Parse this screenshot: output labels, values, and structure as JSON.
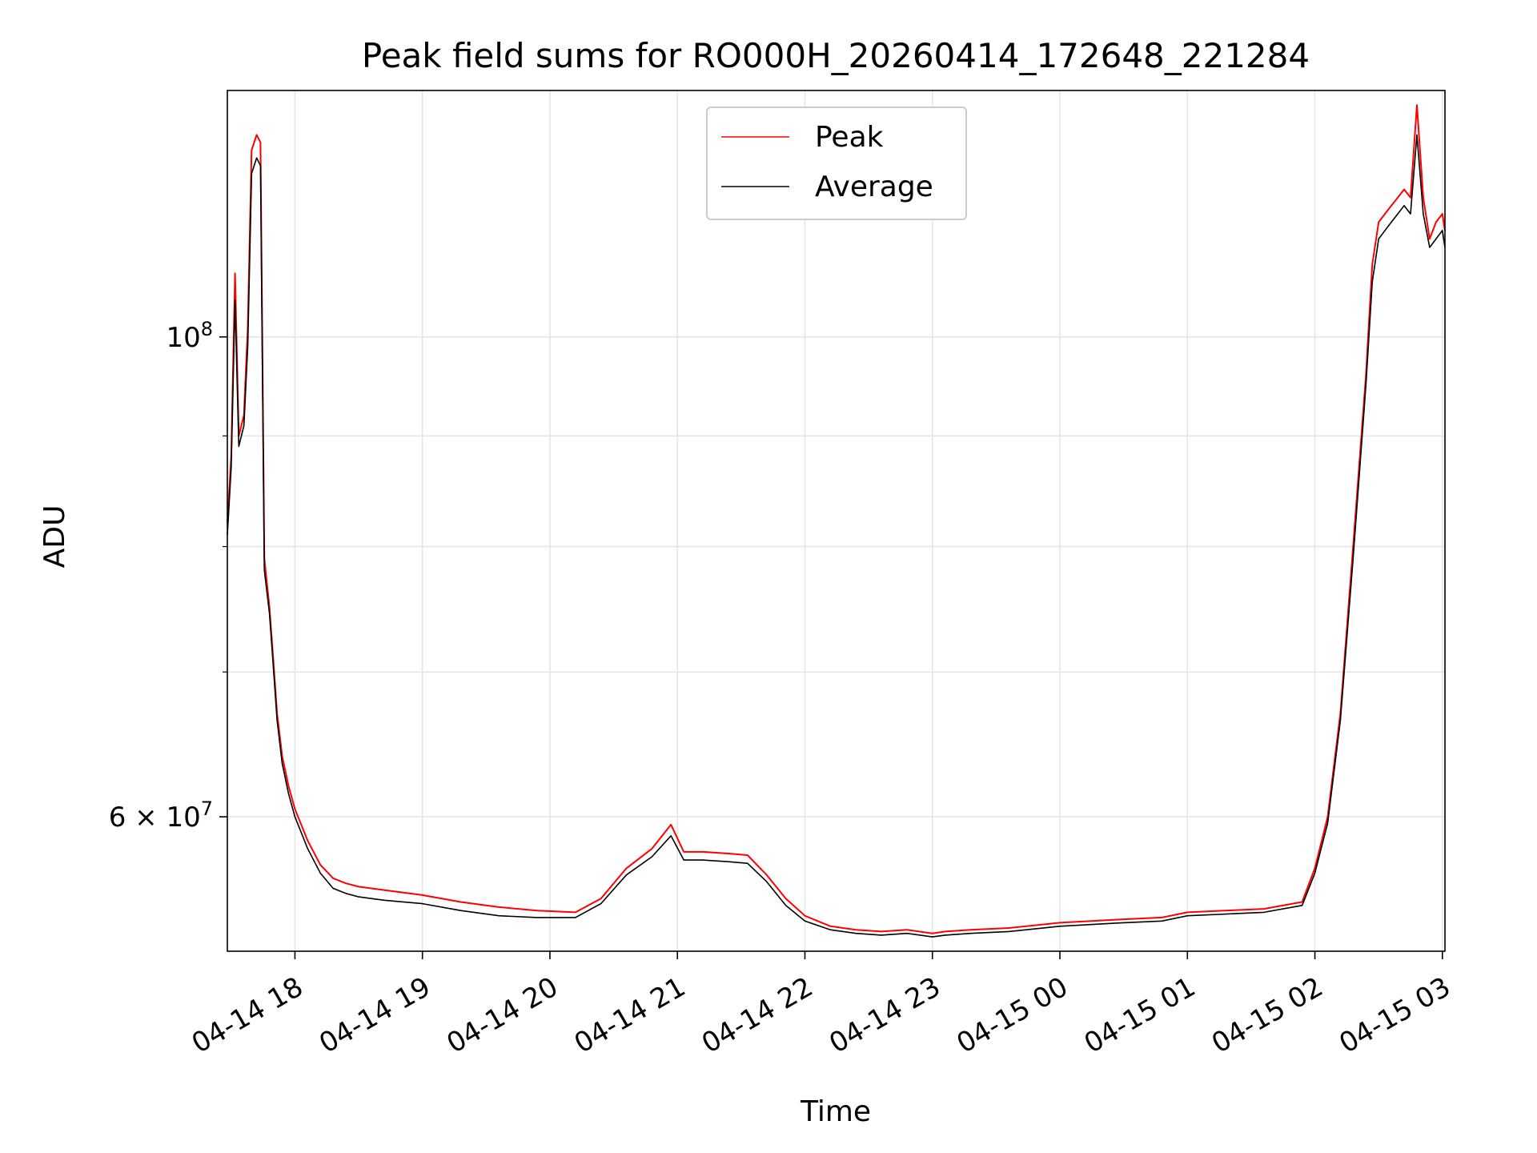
{
  "chart_data": {
    "type": "line",
    "title": "Peak field sums for RO000H_20260414_172648_221284",
    "xlabel": "Time",
    "ylabel": "ADU",
    "yscale": "log",
    "ylim": [
      52000000,
      130000000
    ],
    "xlim_hours": [
      17.47,
      27.02
    ],
    "grid": true,
    "legend_position": "upper center",
    "x_tick_labels": [
      "04-14 18",
      "04-14 19",
      "04-14 20",
      "04-14 21",
      "04-14 22",
      "04-14 23",
      "04-15 00",
      "04-15 01",
      "04-15 02",
      "04-15 03"
    ],
    "x_tick_hours": [
      18,
      19,
      20,
      21,
      22,
      23,
      24,
      25,
      26,
      27
    ],
    "y_major_ticks": [
      {
        "value": 100000000,
        "base": "10",
        "exp": "8",
        "prefix": ""
      },
      {
        "value": 60000000,
        "base": "10",
        "exp": "7",
        "prefix": "6 × "
      }
    ],
    "y_minor_ticks": [
      70000000,
      80000000,
      90000000
    ],
    "series": [
      {
        "name": "Peak",
        "color": "#ff0000",
        "x_hours": [
          17.47,
          17.5,
          17.53,
          17.56,
          17.6,
          17.63,
          17.66,
          17.7,
          17.73,
          17.76,
          17.8,
          17.83,
          17.86,
          17.9,
          17.95,
          18.0,
          18.1,
          18.2,
          18.3,
          18.4,
          18.5,
          18.7,
          19.0,
          19.3,
          19.6,
          19.9,
          20.2,
          20.4,
          20.6,
          20.8,
          20.95,
          21.05,
          21.2,
          21.4,
          21.55,
          21.7,
          21.85,
          22.0,
          22.2,
          22.4,
          22.6,
          22.8,
          23.0,
          23.1,
          23.3,
          23.6,
          24.0,
          24.5,
          24.8,
          25.0,
          25.3,
          25.6,
          25.9,
          26.0,
          26.1,
          26.2,
          26.3,
          26.4,
          26.45,
          26.5,
          26.55,
          26.6,
          26.65,
          26.7,
          26.75,
          26.8,
          26.85,
          26.9,
          26.95,
          27.0,
          27.02
        ],
        "values": [
          82000000,
          88000000,
          107000000,
          90000000,
          92000000,
          101000000,
          122000000,
          124000000,
          123000000,
          79000000,
          75000000,
          71000000,
          67000000,
          64000000,
          62000000,
          60500000,
          58500000,
          57000000,
          56200000,
          55900000,
          55700000,
          55500000,
          55200000,
          54800000,
          54500000,
          54300000,
          54200000,
          55000000,
          56800000,
          58000000,
          59500000,
          57800000,
          57800000,
          57700000,
          57600000,
          56400000,
          55000000,
          54000000,
          53400000,
          53200000,
          53100000,
          53200000,
          53000000,
          53100000,
          53200000,
          53300000,
          53600000,
          53800000,
          53900000,
          54200000,
          54300000,
          54400000,
          54800000,
          56800000,
          60000000,
          67000000,
          80000000,
          96000000,
          108000000,
          113000000,
          114000000,
          115000000,
          116000000,
          117000000,
          116000000,
          128000000,
          116000000,
          111000000,
          113000000,
          114000000,
          112000000
        ]
      },
      {
        "name": "Average",
        "color": "#000000",
        "x_hours": [
          17.47,
          17.5,
          17.53,
          17.56,
          17.6,
          17.63,
          17.66,
          17.7,
          17.73,
          17.76,
          17.8,
          17.83,
          17.86,
          17.9,
          17.95,
          18.0,
          18.1,
          18.2,
          18.3,
          18.4,
          18.5,
          18.7,
          19.0,
          19.3,
          19.6,
          19.9,
          20.2,
          20.4,
          20.6,
          20.8,
          20.95,
          21.05,
          21.2,
          21.4,
          21.55,
          21.7,
          21.85,
          22.0,
          22.2,
          22.4,
          22.6,
          22.8,
          23.0,
          23.1,
          23.3,
          23.6,
          24.0,
          24.5,
          24.8,
          25.0,
          25.3,
          25.6,
          25.9,
          26.0,
          26.1,
          26.2,
          26.3,
          26.4,
          26.45,
          26.5,
          26.55,
          26.6,
          26.65,
          26.7,
          26.75,
          26.8,
          26.85,
          26.9,
          26.95,
          27.0,
          27.02
        ],
        "values": [
          81000000,
          87000000,
          104000000,
          89000000,
          91000000,
          99000000,
          119000000,
          121000000,
          120000000,
          78000000,
          74500000,
          70500000,
          66500000,
          63500000,
          61500000,
          60000000,
          58000000,
          56500000,
          55600000,
          55300000,
          55100000,
          54900000,
          54700000,
          54300000,
          54000000,
          53900000,
          53900000,
          54700000,
          56400000,
          57500000,
          58800000,
          57300000,
          57300000,
          57200000,
          57100000,
          56000000,
          54600000,
          53700000,
          53200000,
          53000000,
          52900000,
          53000000,
          52800000,
          52900000,
          53000000,
          53100000,
          53400000,
          53600000,
          53700000,
          54000000,
          54100000,
          54200000,
          54600000,
          56500000,
          59600000,
          66500000,
          79000000,
          95000000,
          106000000,
          111000000,
          112000000,
          113000000,
          114000000,
          115000000,
          114000000,
          124000000,
          114000000,
          110000000,
          111000000,
          112000000,
          110000000
        ]
      }
    ]
  }
}
